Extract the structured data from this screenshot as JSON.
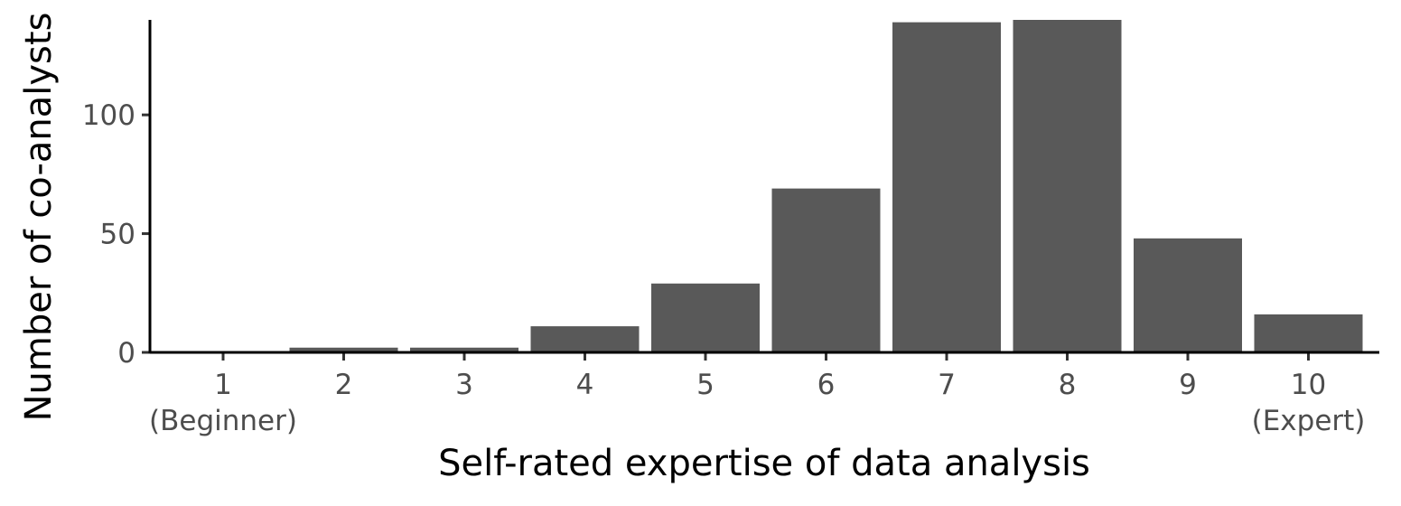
{
  "chart_data": {
    "type": "bar",
    "categories": [
      "1",
      "2",
      "3",
      "4",
      "5",
      "6",
      "7",
      "8",
      "9",
      "10"
    ],
    "category_sublabels": [
      "(Beginner)",
      "",
      "",
      "",
      "",
      "",
      "",
      "",
      "",
      "(Expert)"
    ],
    "values": [
      0.5,
      2,
      2,
      11,
      29,
      69,
      139,
      140,
      48,
      16
    ],
    "xlabel": "Self-rated expertise of data analysis",
    "ylabel": "Number of co-analysts",
    "ylim": [
      0,
      140
    ],
    "yticks": [
      0,
      50,
      100
    ],
    "grid": false,
    "colors": {
      "bar": "#595959",
      "axis": "#000000",
      "tick_text": "#4d4d4d"
    }
  }
}
